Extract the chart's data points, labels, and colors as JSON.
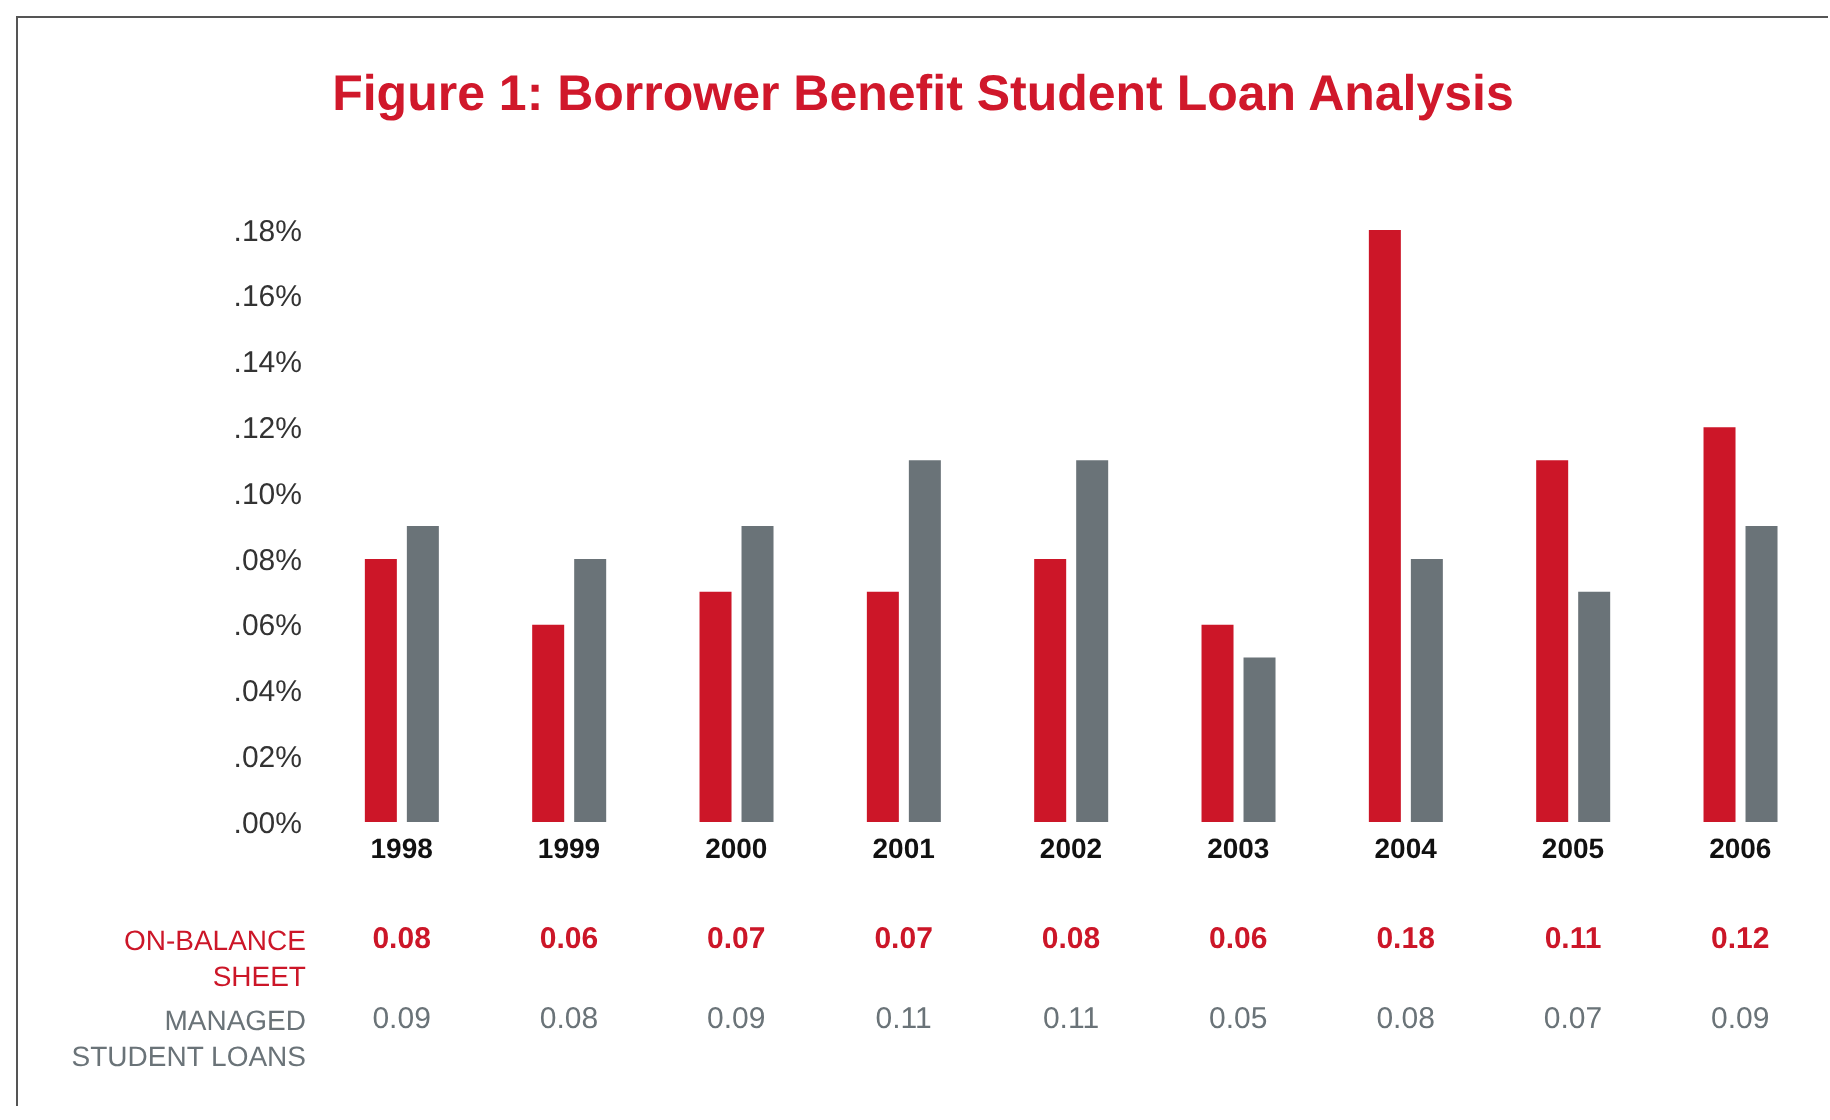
{
  "chart_data": {
    "type": "bar",
    "title": "Figure 1: Borrower Benefit Student Loan Analysis",
    "categories": [
      "1998",
      "1999",
      "2000",
      "2001",
      "2002",
      "2003",
      "2004",
      "2005",
      "2006"
    ],
    "series": [
      {
        "name": "ON-BALANCE SHEET",
        "color": "#cc1628",
        "values": [
          0.08,
          0.06,
          0.07,
          0.07,
          0.08,
          0.06,
          0.18,
          0.11,
          0.12
        ]
      },
      {
        "name": "MANAGED STUDENT LOANS",
        "color": "#6a7378",
        "values": [
          0.09,
          0.08,
          0.09,
          0.11,
          0.11,
          0.05,
          0.08,
          0.07,
          0.09
        ]
      }
    ],
    "ylim": [
      0,
      0.18
    ],
    "yticks": [
      {
        "value": 0,
        "label": ".00%"
      },
      {
        "value": 0.02,
        "label": ".02%"
      },
      {
        "value": 0.04,
        "label": ".04%"
      },
      {
        "value": 0.06,
        "label": ".06%"
      },
      {
        "value": 0.08,
        "label": ".08%"
      },
      {
        "value": 0.1,
        "label": ".10%"
      },
      {
        "value": 0.12,
        "label": ".12%"
      },
      {
        "value": 0.14,
        "label": ".14%"
      },
      {
        "value": 0.16,
        "label": ".16%"
      },
      {
        "value": 0.18,
        "label": ".18%"
      }
    ],
    "data_labels": true,
    "legend": false,
    "grid": false
  }
}
